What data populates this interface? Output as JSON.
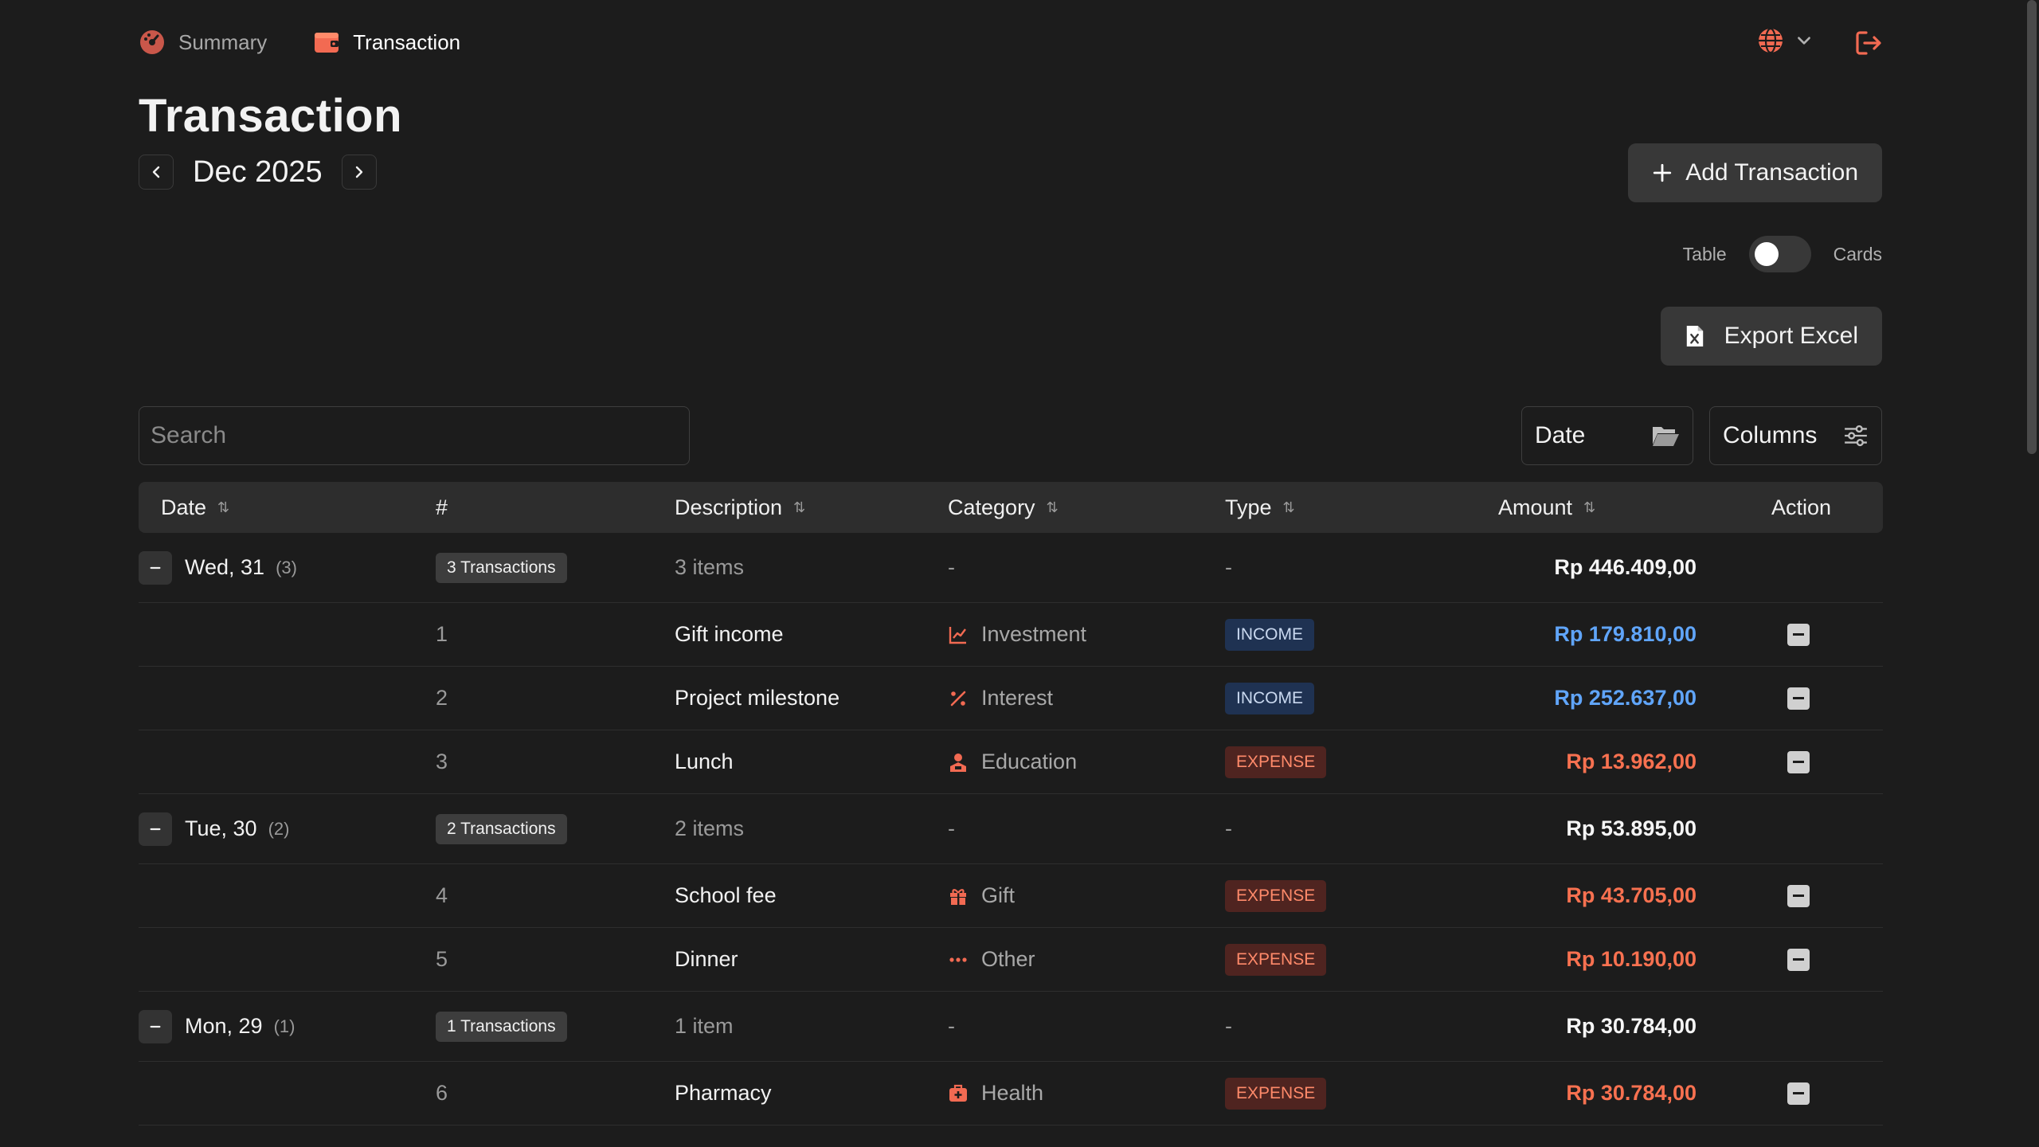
{
  "nav": {
    "summary_label": "Summary",
    "transaction_label": "Transaction"
  },
  "page": {
    "title": "Transaction",
    "month": "Dec 2025"
  },
  "actions": {
    "add_label": "Add Transaction",
    "export_label": "Export Excel"
  },
  "view_toggle": {
    "left_label": "Table",
    "right_label": "Cards",
    "selected": "Table"
  },
  "search": {
    "placeholder": "Search",
    "value": ""
  },
  "filters": {
    "date_label": "Date",
    "columns_label": "Columns"
  },
  "table": {
    "headers": {
      "date": "Date",
      "num": "#",
      "description": "Description",
      "category": "Category",
      "type": "Type",
      "amount": "Amount",
      "action": "Action"
    },
    "groups": [
      {
        "date": "Wed, 31",
        "count": "(3)",
        "tx_label": "3 Transactions",
        "items_label": "3 items",
        "category": "-",
        "type": "-",
        "total": "Rp 446.409,00",
        "rows": [
          {
            "num": "1",
            "description": "Gift income",
            "category": "Investment",
            "category_icon": "chart-line-icon",
            "type": "INCOME",
            "amount": "Rp 179.810,00"
          },
          {
            "num": "2",
            "description": "Project milestone",
            "category": "Interest",
            "category_icon": "percent-icon",
            "type": "INCOME",
            "amount": "Rp 252.637,00"
          },
          {
            "num": "3",
            "description": "Lunch",
            "category": "Education",
            "category_icon": "graduation-icon",
            "type": "EXPENSE",
            "amount": "Rp 13.962,00"
          }
        ]
      },
      {
        "date": "Tue, 30",
        "count": "(2)",
        "tx_label": "2 Transactions",
        "items_label": "2 items",
        "category": "-",
        "type": "-",
        "total": "Rp 53.895,00",
        "rows": [
          {
            "num": "4",
            "description": "School fee",
            "category": "Gift",
            "category_icon": "gift-icon",
            "type": "EXPENSE",
            "amount": "Rp 43.705,00"
          },
          {
            "num": "5",
            "description": "Dinner",
            "category": "Other",
            "category_icon": "dots-icon",
            "type": "EXPENSE",
            "amount": "Rp 10.190,00"
          }
        ]
      },
      {
        "date": "Mon, 29",
        "count": "(1)",
        "tx_label": "1 Transactions",
        "items_label": "1 item",
        "category": "-",
        "type": "-",
        "total": "Rp 30.784,00",
        "rows": [
          {
            "num": "6",
            "description": "Pharmacy",
            "category": "Health",
            "category_icon": "medical-bag-icon",
            "type": "EXPENSE",
            "amount": "Rp 30.784,00"
          }
        ]
      }
    ]
  },
  "colors": {
    "background": "#1c1c1c",
    "income": "#60a5fa",
    "expense": "#f87150",
    "accent": "#f26a52"
  }
}
